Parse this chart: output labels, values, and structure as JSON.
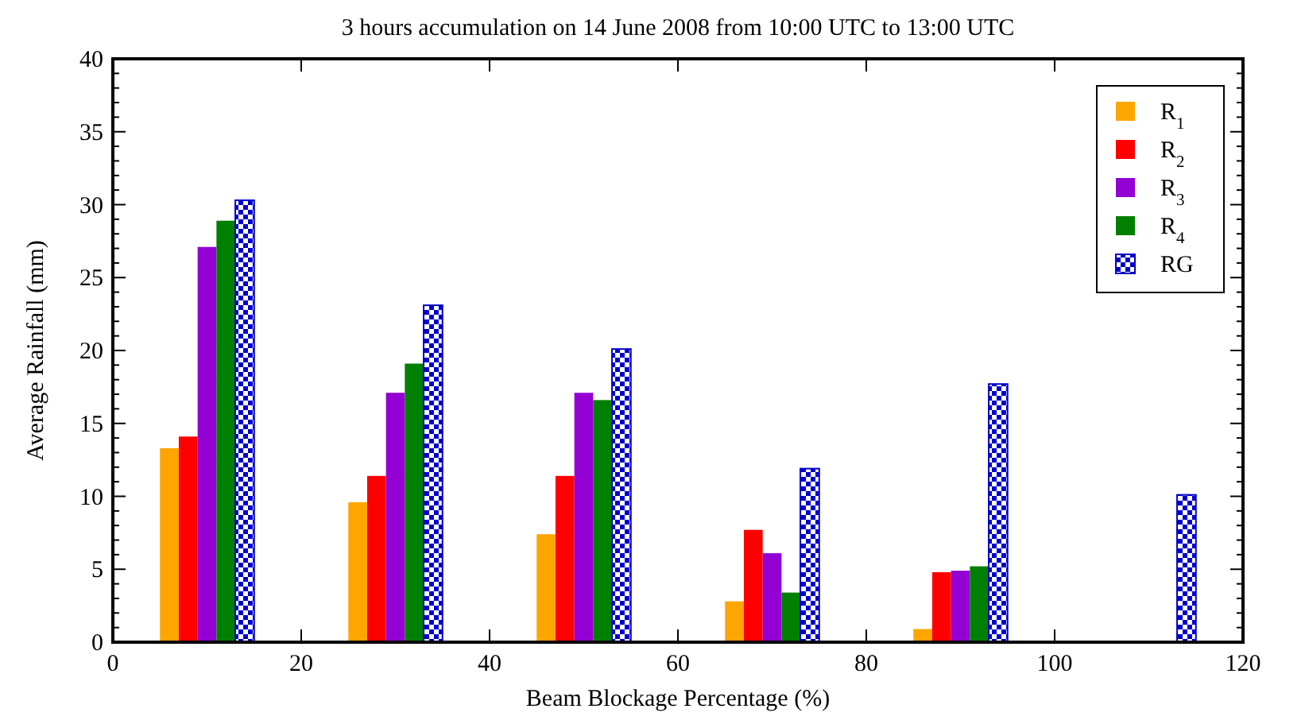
{
  "chart_data": {
    "type": "bar",
    "title": "3 hours accumulation on 14 June 2008 from 10:00 UTC to 13:00 UTC",
    "xlabel": "Beam Blockage Percentage (%)",
    "ylabel": "Average Rainfall (mm)",
    "series": [
      {
        "name": "R$_{1}$",
        "color": "#ffa500",
        "x": [
          6,
          26,
          46,
          66,
          86
        ],
        "values": [
          13.3,
          9.6,
          7.4,
          2.8,
          0.9
        ]
      },
      {
        "name": "R$_{2}$",
        "color": "#ff0000",
        "x": [
          8,
          28,
          48,
          68,
          88
        ],
        "values": [
          14.1,
          11.4,
          11.4,
          7.7,
          4.8
        ]
      },
      {
        "name": "R$_{3}$",
        "color": "#9400d3",
        "x": [
          10,
          30,
          50,
          70,
          90
        ],
        "values": [
          27.1,
          17.1,
          17.1,
          6.1,
          4.9
        ]
      },
      {
        "name": "R$_{4}$",
        "color": "#008000",
        "x": [
          12,
          32,
          52,
          72,
          92
        ],
        "values": [
          28.9,
          19.1,
          16.6,
          3.4,
          5.2
        ]
      },
      {
        "name": "RG",
        "color": "#0000cc",
        "x": [
          14,
          34,
          54,
          74,
          94,
          114
        ],
        "values": [
          30.3,
          23.1,
          20.1,
          11.9,
          17.7,
          10.1
        ]
      }
    ],
    "xlim": [
      0,
      120
    ],
    "xticks": [
      0,
      20,
      40,
      60,
      80,
      100,
      120
    ],
    "ylim": [
      0,
      40
    ],
    "yticks": [
      0,
      {
        "value": 1,
        "label": null
      },
      {
        "value": 2,
        "label": null
      },
      {
        "value": 3,
        "label": null
      },
      {
        "value": 4,
        "label": null
      },
      5,
      {
        "value": 6,
        "label": null
      },
      {
        "value": 7,
        "label": null
      },
      {
        "value": 8,
        "label": null
      },
      {
        "value": 9,
        "label": null
      },
      10,
      {
        "value": 11,
        "label": null
      },
      {
        "value": 12,
        "label": null
      },
      {
        "value": 13,
        "label": null
      },
      {
        "value": 14,
        "label": null
      },
      15,
      {
        "value": 16,
        "label": null
      },
      {
        "value": 17,
        "label": null
      },
      {
        "value": 18,
        "label": null
      },
      {
        "value": 19,
        "label": null
      },
      20,
      {
        "value": 21,
        "label": null
      },
      {
        "value": 22,
        "label": null
      },
      {
        "value": 23,
        "label": null
      },
      {
        "value": 24,
        "label": null
      },
      25,
      {
        "value": 26,
        "label": null
      },
      {
        "value": 27,
        "label": null
      },
      {
        "value": 28,
        "label": null
      },
      {
        "value": 29,
        "label": null
      },
      30,
      {
        "value": 31,
        "label": null
      },
      {
        "value": 32,
        "label": null
      },
      {
        "value": 33,
        "label": null
      },
      {
        "value": 34,
        "label": null
      },
      35,
      {
        "value": 36,
        "label": null
      },
      {
        "value": 37,
        "label": null
      },
      {
        "value": 38,
        "label": null
      },
      {
        "value": 39,
        "label": null
      },
      40
    ],
    "legend": "top right",
    "grid": false
  }
}
